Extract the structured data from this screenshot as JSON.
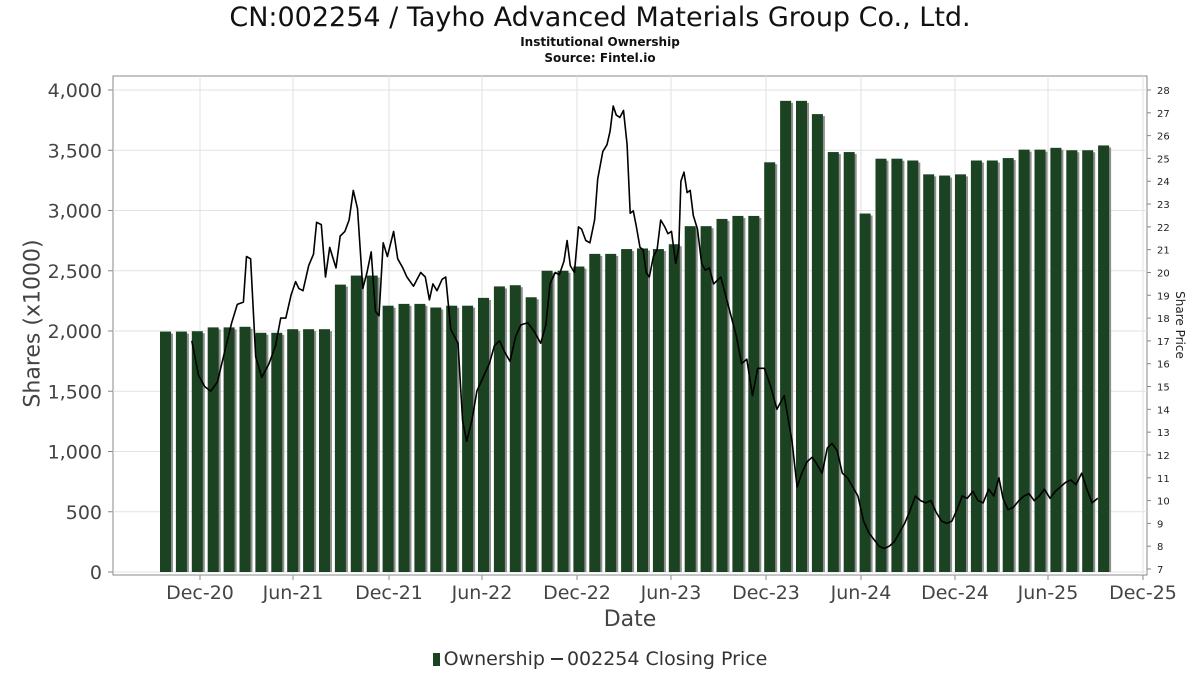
{
  "header": {
    "title": "CN:002254 / Tayho Advanced Materials Group Co., Ltd.",
    "subtitle": "Institutional Ownership",
    "source": "Source: Fintel.io"
  },
  "legend": {
    "ownership_label": "Ownership",
    "price_label": "002254 Closing Price"
  },
  "colors": {
    "bar": "#1b4322",
    "bar_shadow": "#8f8f8f",
    "price_line": "#000000",
    "grid": "#e2e2e2",
    "axis": "#888888"
  },
  "chart_data": {
    "type": "bar",
    "xlabel": "Date",
    "ylabel": "Shares (x1000)",
    "y2label": "Share Price",
    "ylim": [
      0,
      4000
    ],
    "y2lim": [
      7,
      28
    ],
    "yticks": [
      "0",
      "500",
      "1,000",
      "1,500",
      "2,000",
      "2,500",
      "3,000",
      "3,500",
      "4,000"
    ],
    "y2ticks": [
      "7",
      "8",
      "9",
      "10",
      "11",
      "12",
      "13",
      "14",
      "15",
      "16",
      "17",
      "18",
      "19",
      "20",
      "21",
      "22",
      "23",
      "24",
      "25",
      "26",
      "27",
      "28"
    ],
    "xticks": [
      "Dec-20",
      "Jun-21",
      "Dec-21",
      "Jun-22",
      "Dec-22",
      "Jun-23",
      "Dec-23",
      "Jun-24",
      "Dec-24",
      "Jun-25",
      "Dec-25"
    ],
    "grid": true,
    "legend_position": "bottom",
    "series": [
      {
        "name": "Ownership",
        "type": "bar",
        "values": [
          1995,
          1995,
          1998,
          2030,
          2030,
          2035,
          1985,
          1985,
          2015,
          2015,
          2015,
          2385,
          2460,
          2460,
          2210,
          2225,
          2225,
          2195,
          2210,
          2210,
          2275,
          2370,
          2380,
          2280,
          2500,
          2500,
          2535,
          2640,
          2640,
          2680,
          2685,
          2680,
          2720,
          2870,
          2870,
          2930,
          2955,
          2955,
          3400,
          3910,
          3910,
          3800,
          3485,
          3485,
          2975,
          3430,
          3430,
          3415,
          3300,
          3290,
          3300,
          3415,
          3415,
          3435,
          3505,
          3505,
          3520,
          3500,
          3500,
          3540
        ]
      },
      {
        "name": "002254 Closing Price",
        "type": "line",
        "points": [
          [
            "2020-11-15",
            17.0
          ],
          [
            "2020-11-28",
            15.5
          ],
          [
            "2020-12-10",
            15.0
          ],
          [
            "2020-12-22",
            14.8
          ],
          [
            "2021-01-04",
            15.2
          ],
          [
            "2021-01-18",
            16.5
          ],
          [
            "2021-02-01",
            17.8
          ],
          [
            "2021-02-12",
            18.6
          ],
          [
            "2021-02-24",
            18.7
          ],
          [
            "2021-03-02",
            20.7
          ],
          [
            "2021-03-10",
            20.6
          ],
          [
            "2021-03-20",
            16.3
          ],
          [
            "2021-04-01",
            15.4
          ],
          [
            "2021-04-15",
            16.0
          ],
          [
            "2021-04-28",
            16.8
          ],
          [
            "2021-05-08",
            18.0
          ],
          [
            "2021-05-18",
            18.0
          ],
          [
            "2021-05-28",
            19.0
          ],
          [
            "2021-06-06",
            19.6
          ],
          [
            "2021-06-12",
            19.3
          ],
          [
            "2021-06-20",
            19.2
          ],
          [
            "2021-07-01",
            20.3
          ],
          [
            "2021-07-10",
            20.8
          ],
          [
            "2021-07-16",
            22.2
          ],
          [
            "2021-07-25",
            22.1
          ],
          [
            "2021-08-02",
            19.8
          ],
          [
            "2021-08-10",
            21.1
          ],
          [
            "2021-08-22",
            20.2
          ],
          [
            "2021-08-30",
            21.6
          ],
          [
            "2021-09-08",
            21.8
          ],
          [
            "2021-09-16",
            22.3
          ],
          [
            "2021-09-24",
            23.6
          ],
          [
            "2021-10-02",
            22.8
          ],
          [
            "2021-10-12",
            19.3
          ],
          [
            "2021-10-20",
            20.0
          ],
          [
            "2021-10-28",
            20.9
          ],
          [
            "2021-11-05",
            18.3
          ],
          [
            "2021-11-12",
            18.1
          ],
          [
            "2021-11-20",
            21.3
          ],
          [
            "2021-11-28",
            20.7
          ],
          [
            "2021-12-10",
            21.8
          ],
          [
            "2021-12-18",
            20.6
          ],
          [
            "2021-12-28",
            20.2
          ],
          [
            "2022-01-05",
            19.8
          ],
          [
            "2022-01-18",
            19.4
          ],
          [
            "2022-01-25",
            19.7
          ],
          [
            "2022-02-01",
            20.0
          ],
          [
            "2022-02-10",
            19.8
          ],
          [
            "2022-02-18",
            18.8
          ],
          [
            "2022-02-25",
            19.5
          ],
          [
            "2022-03-05",
            19.2
          ],
          [
            "2022-03-15",
            19.7
          ],
          [
            "2022-03-22",
            19.8
          ],
          [
            "2022-04-01",
            17.5
          ],
          [
            "2022-04-15",
            16.9
          ],
          [
            "2022-04-24",
            13.5
          ],
          [
            "2022-05-02",
            12.6
          ],
          [
            "2022-05-12",
            13.5
          ],
          [
            "2022-05-22",
            14.8
          ],
          [
            "2022-06-05",
            15.5
          ],
          [
            "2022-06-15",
            16.0
          ],
          [
            "2022-06-25",
            16.8
          ],
          [
            "2022-07-05",
            17.0
          ],
          [
            "2022-07-15",
            16.5
          ],
          [
            "2022-07-25",
            16.1
          ],
          [
            "2022-08-05",
            17.2
          ],
          [
            "2022-08-15",
            17.7
          ],
          [
            "2022-08-28",
            17.8
          ],
          [
            "2022-09-10",
            17.4
          ],
          [
            "2022-09-22",
            16.9
          ],
          [
            "2022-10-02",
            17.7
          ],
          [
            "2022-10-10",
            19.5
          ],
          [
            "2022-10-20",
            20.0
          ],
          [
            "2022-10-28",
            19.9
          ],
          [
            "2022-11-06",
            20.5
          ],
          [
            "2022-11-12",
            21.4
          ],
          [
            "2022-11-18",
            20.3
          ],
          [
            "2022-11-26",
            20.0
          ],
          [
            "2022-12-04",
            22.0
          ],
          [
            "2022-12-10",
            21.9
          ],
          [
            "2022-12-18",
            21.4
          ],
          [
            "2022-12-26",
            21.3
          ],
          [
            "2023-01-04",
            22.3
          ],
          [
            "2023-01-10",
            24.1
          ],
          [
            "2023-01-20",
            25.3
          ],
          [
            "2023-01-28",
            25.6
          ],
          [
            "2023-02-03",
            26.2
          ],
          [
            "2023-02-09",
            27.3
          ],
          [
            "2023-02-15",
            26.9
          ],
          [
            "2023-02-22",
            26.8
          ],
          [
            "2023-03-01",
            27.1
          ],
          [
            "2023-03-08",
            25.6
          ],
          [
            "2023-03-14",
            22.6
          ],
          [
            "2023-03-20",
            22.7
          ],
          [
            "2023-03-26",
            22.0
          ],
          [
            "2023-04-02",
            21.1
          ],
          [
            "2023-04-08",
            21.0
          ],
          [
            "2023-04-14",
            20.0
          ],
          [
            "2023-04-20",
            19.8
          ],
          [
            "2023-04-28",
            20.7
          ],
          [
            "2023-05-05",
            21.0
          ],
          [
            "2023-05-12",
            22.3
          ],
          [
            "2023-05-20",
            22.0
          ],
          [
            "2023-05-26",
            21.7
          ],
          [
            "2023-06-02",
            21.8
          ],
          [
            "2023-06-10",
            20.4
          ],
          [
            "2023-06-16",
            21.1
          ],
          [
            "2023-06-20",
            24.0
          ],
          [
            "2023-06-26",
            24.4
          ],
          [
            "2023-07-02",
            23.5
          ],
          [
            "2023-07-08",
            23.6
          ],
          [
            "2023-07-14",
            22.5
          ],
          [
            "2023-07-22",
            21.9
          ],
          [
            "2023-07-30",
            20.4
          ],
          [
            "2023-08-06",
            20.1
          ],
          [
            "2023-08-14",
            20.2
          ],
          [
            "2023-08-22",
            19.5
          ],
          [
            "2023-09-05",
            19.8
          ],
          [
            "2023-09-20",
            18.5
          ],
          [
            "2023-10-05",
            17.2
          ],
          [
            "2023-10-15",
            16.0
          ],
          [
            "2023-10-25",
            16.2
          ],
          [
            "2023-11-05",
            14.6
          ],
          [
            "2023-11-15",
            15.8
          ],
          [
            "2023-11-28",
            15.8
          ],
          [
            "2023-12-10",
            15.0
          ],
          [
            "2023-12-22",
            14.0
          ],
          [
            "2024-01-05",
            14.6
          ],
          [
            "2024-01-20",
            12.6
          ],
          [
            "2024-01-30",
            10.6
          ],
          [
            "2024-02-08",
            11.2
          ],
          [
            "2024-02-18",
            11.7
          ],
          [
            "2024-02-28",
            11.9
          ],
          [
            "2024-03-08",
            11.6
          ],
          [
            "2024-03-18",
            11.2
          ],
          [
            "2024-03-28",
            12.3
          ],
          [
            "2024-04-06",
            12.5
          ],
          [
            "2024-04-16",
            12.2
          ],
          [
            "2024-04-26",
            11.2
          ],
          [
            "2024-05-06",
            11.0
          ],
          [
            "2024-05-16",
            10.6
          ],
          [
            "2024-05-26",
            10.2
          ],
          [
            "2024-06-06",
            9.1
          ],
          [
            "2024-06-16",
            8.6
          ],
          [
            "2024-06-26",
            8.3
          ],
          [
            "2024-07-06",
            8.0
          ],
          [
            "2024-07-16",
            7.9
          ],
          [
            "2024-07-26",
            8.0
          ],
          [
            "2024-08-05",
            8.2
          ],
          [
            "2024-08-15",
            8.6
          ],
          [
            "2024-08-25",
            9.0
          ],
          [
            "2024-09-05",
            9.6
          ],
          [
            "2024-09-15",
            10.2
          ],
          [
            "2024-09-25",
            10.0
          ],
          [
            "2024-10-05",
            9.9
          ],
          [
            "2024-10-15",
            10.0
          ],
          [
            "2024-10-25",
            9.5
          ],
          [
            "2024-11-05",
            9.1
          ],
          [
            "2024-11-15",
            9.0
          ],
          [
            "2024-11-25",
            9.1
          ],
          [
            "2024-12-05",
            9.6
          ],
          [
            "2024-12-15",
            10.2
          ],
          [
            "2024-12-25",
            10.1
          ],
          [
            "2025-01-05",
            10.4
          ],
          [
            "2025-01-15",
            10.0
          ],
          [
            "2025-01-25",
            9.9
          ],
          [
            "2025-02-05",
            10.5
          ],
          [
            "2025-02-15",
            10.2
          ],
          [
            "2025-02-25",
            11.0
          ],
          [
            "2025-03-05",
            10.1
          ],
          [
            "2025-03-15",
            9.6
          ],
          [
            "2025-03-25",
            9.7
          ],
          [
            "2025-04-05",
            10.0
          ],
          [
            "2025-04-15",
            10.2
          ],
          [
            "2025-04-25",
            10.3
          ],
          [
            "2025-05-05",
            10.0
          ],
          [
            "2025-05-15",
            10.2
          ],
          [
            "2025-05-25",
            10.5
          ],
          [
            "2025-06-05",
            10.1
          ],
          [
            "2025-06-15",
            10.4
          ],
          [
            "2025-06-25",
            10.6
          ],
          [
            "2025-07-05",
            10.8
          ],
          [
            "2025-07-15",
            10.9
          ],
          [
            "2025-07-25",
            10.7
          ],
          [
            "2025-08-05",
            11.2
          ],
          [
            "2025-08-15",
            10.5
          ],
          [
            "2025-08-25",
            9.9
          ],
          [
            "2025-09-05",
            10.1
          ]
        ]
      }
    ]
  }
}
